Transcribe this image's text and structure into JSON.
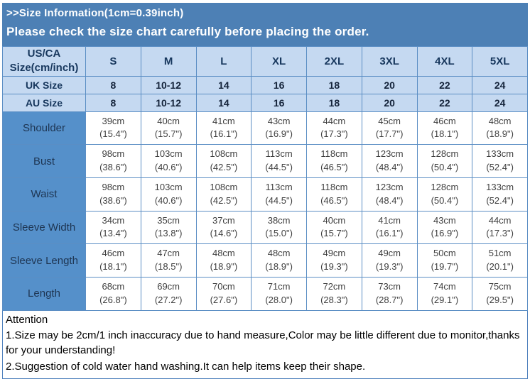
{
  "banner": {
    "title": ">>Size Information(1cm=0.39inch)",
    "subtitle": "Please check the size chart carefully before placing the order."
  },
  "table": {
    "corner_header": "US/CA Size(cm/inch)",
    "size_headers": [
      "S",
      "M",
      "L",
      "XL",
      "2XL",
      "3XL",
      "4XL",
      "5XL"
    ],
    "size_rows": [
      {
        "label": "UK Size",
        "values": [
          "8",
          "10-12",
          "14",
          "16",
          "18",
          "20",
          "22",
          "24"
        ]
      },
      {
        "label": "AU Size",
        "values": [
          "8",
          "10-12",
          "14",
          "16",
          "18",
          "20",
          "22",
          "24"
        ]
      }
    ],
    "measurement_rows": [
      {
        "label": "Shoulder",
        "cm": [
          "39cm",
          "40cm",
          "41cm",
          "43cm",
          "44cm",
          "45cm",
          "46cm",
          "48cm"
        ],
        "inch": [
          "(15.4\")",
          "(15.7\")",
          "(16.1\")",
          "(16.9\")",
          "(17.3\")",
          "(17.7\")",
          "(18.1\")",
          "(18.9\")"
        ]
      },
      {
        "label": "Bust",
        "cm": [
          "98cm",
          "103cm",
          "108cm",
          "113cm",
          "118cm",
          "123cm",
          "128cm",
          "133cm"
        ],
        "inch": [
          "(38.6\")",
          "(40.6\")",
          "(42.5\")",
          "(44.5\")",
          "(46.5\")",
          "(48.4\")",
          "(50.4\")",
          "(52.4\")"
        ]
      },
      {
        "label": "Waist",
        "cm": [
          "98cm",
          "103cm",
          "108cm",
          "113cm",
          "118cm",
          "123cm",
          "128cm",
          "133cm"
        ],
        "inch": [
          "(38.6\")",
          "(40.6\")",
          "(42.5\")",
          "(44.5\")",
          "(46.5\")",
          "(48.4\")",
          "(50.4\")",
          "(52.4\")"
        ]
      },
      {
        "label": "Sleeve Width",
        "cm": [
          "34cm",
          "35cm",
          "37cm",
          "38cm",
          "40cm",
          "41cm",
          "43cm",
          "44cm"
        ],
        "inch": [
          "(13.4\")",
          "(13.8\")",
          "(14.6\")",
          "(15.0\")",
          "(15.7\")",
          "(16.1\")",
          "(16.9\")",
          "(17.3\")"
        ]
      },
      {
        "label": "Sleeve Length",
        "cm": [
          "46cm",
          "47cm",
          "48cm",
          "48cm",
          "49cm",
          "49cm",
          "50cm",
          "51cm"
        ],
        "inch": [
          "(18.1\")",
          "(18.5\")",
          "(18.9\")",
          "(18.9\")",
          "(19.3\")",
          "(19.3\")",
          "(19.7\")",
          "(20.1\")"
        ]
      },
      {
        "label": "Length",
        "cm": [
          "68cm",
          "69cm",
          "70cm",
          "71cm",
          "72cm",
          "73cm",
          "74cm",
          "75cm"
        ],
        "inch": [
          "(26.8\")",
          "(27.2\")",
          "(27.6\")",
          "(28.0\")",
          "(28.3\")",
          "(28.7\")",
          "(29.1\")",
          "(29.5\")"
        ]
      }
    ]
  },
  "attention": {
    "title": "Attention",
    "lines": [
      "1.Size may be 2cm/1 inch inaccuracy due to hand measure,Color may be little different due to monitor,thanks for your understanding!",
      "2.Suggestion of cold water hand washing.It can help items keep their shape."
    ]
  },
  "colors": {
    "banner_bg": "#4d80b5",
    "header_bg": "#c5d9f1",
    "label_bg": "#5590ca",
    "border": "#5b8ec4",
    "header_text": "#17375d"
  }
}
